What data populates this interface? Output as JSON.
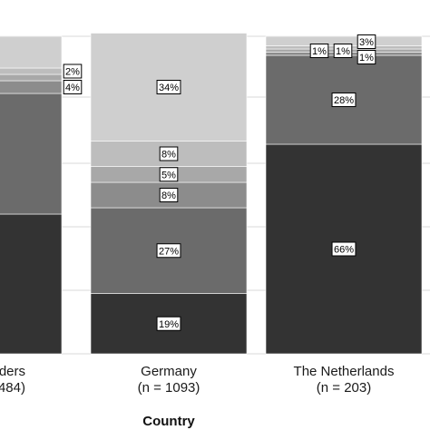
{
  "chart_data": {
    "type": "bar",
    "stacked": true,
    "percent": true,
    "xlabel": "Country",
    "categories": [
      {
        "name": "Flanders",
        "shown_name": "ders",
        "n_label": "484)",
        "segments": [
          {
            "value": 44,
            "label": "%",
            "color": "#333333"
          },
          {
            "value": 38,
            "label": "%",
            "color": "#6b6b6b"
          },
          {
            "value": 4,
            "label": "4%",
            "color": "#8c8c8c"
          },
          {
            "value": 2,
            "label": "",
            "color": "#a8a8a8"
          },
          {
            "value": 2,
            "label": "2%",
            "color": "#bdbdbd"
          },
          {
            "value": 10,
            "label": "",
            "color": "#cfcfcf"
          }
        ]
      },
      {
        "name": "Germany",
        "shown_name": "Germany",
        "n_label": "(n = 1093)",
        "segments": [
          {
            "value": 19,
            "label": "19%",
            "color": "#333333"
          },
          {
            "value": 27,
            "label": "27%",
            "color": "#6b6b6b"
          },
          {
            "value": 8,
            "label": "8%",
            "color": "#8c8c8c"
          },
          {
            "value": 5,
            "label": "5%",
            "color": "#a8a8a8"
          },
          {
            "value": 8,
            "label": "8%",
            "color": "#bdbdbd"
          },
          {
            "value": 34,
            "label": "34%",
            "color": "#cfcfcf"
          }
        ]
      },
      {
        "name": "The Netherlands",
        "shown_name": "The Netherlands",
        "n_label": "(n = 203)",
        "segments": [
          {
            "value": 66,
            "label": "66%",
            "color": "#333333"
          },
          {
            "value": 28,
            "label": "28%",
            "color": "#6b6b6b"
          },
          {
            "value": 1,
            "label": "1%",
            "color": "#8c8c8c"
          },
          {
            "value": 1,
            "label": "1%",
            "color": "#a8a8a8"
          },
          {
            "value": 1,
            "label": "1%",
            "color": "#bdbdbd"
          },
          {
            "value": 3,
            "label": "3%",
            "color": "#cfcfcf"
          }
        ]
      }
    ],
    "ylim": [
      0,
      100
    ],
    "grid": true,
    "colors": {
      "panel_bg": "#ffffff",
      "gridline": "#d9d9d9"
    }
  }
}
